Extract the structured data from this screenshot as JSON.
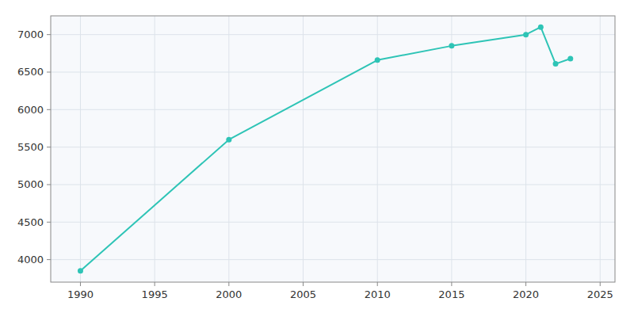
{
  "chart_data": {
    "type": "line",
    "x": [
      1990,
      2000,
      2010,
      2015,
      2020,
      2021,
      2022,
      2023
    ],
    "values": [
      3850,
      5600,
      6660,
      6850,
      7000,
      7100,
      6610,
      6680
    ],
    "color": "#2ec4b6",
    "marker": "circle",
    "xlim": [
      1988,
      2026
    ],
    "ylim": [
      3700,
      7250
    ],
    "xticks": [
      1990,
      1995,
      2000,
      2005,
      2010,
      2015,
      2020,
      2025
    ],
    "yticks": [
      4000,
      4500,
      5000,
      5500,
      6000,
      6500,
      7000
    ],
    "grid": true
  }
}
